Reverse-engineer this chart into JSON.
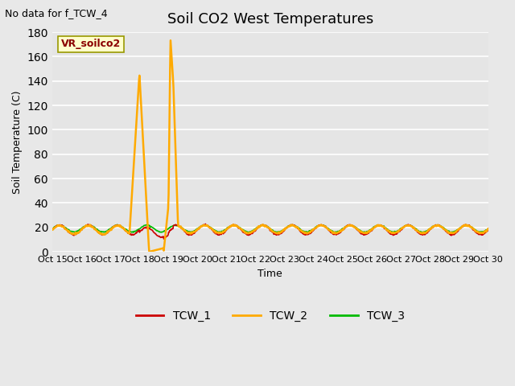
{
  "title": "Soil CO2 West Temperatures",
  "no_data_text": "No data for f_TCW_4",
  "ylabel": "Soil Temperature (C)",
  "xlabel": "Time",
  "xlim": [
    0,
    45
  ],
  "ylim": [
    0,
    180
  ],
  "yticks": [
    0,
    20,
    40,
    60,
    80,
    100,
    120,
    140,
    160,
    180
  ],
  "xtick_labels": [
    "Oct 15",
    "Oct 16",
    "Oct 17",
    "Oct 18",
    "Oct 19",
    "Oct 20",
    "Oct 21",
    "Oct 22",
    "Oct 23",
    "Oct 24",
    "Oct 25",
    "Oct 26",
    "Oct 27",
    "Oct 28",
    "Oct 29",
    "Oct 30"
  ],
  "xtick_positions": [
    0,
    3,
    6,
    9,
    12,
    15,
    18,
    21,
    24,
    27,
    30,
    33,
    36,
    39,
    42,
    45
  ],
  "bg_color": "#e8e8e8",
  "plot_bg_color": "#e5e5e5",
  "grid_color": "#ffffff",
  "legend_label": "VR_soilco2",
  "series_colors": {
    "TCW_1": "#cc0000",
    "TCW_2": "#ffaa00",
    "TCW_3": "#00bb00"
  },
  "line_widths": {
    "TCW_1": 1.2,
    "TCW_2": 1.8,
    "TCW_3": 1.2
  },
  "title_fontsize": 13,
  "axis_label_fontsize": 9,
  "tick_fontsize": 8,
  "legend_fontsize": 10
}
